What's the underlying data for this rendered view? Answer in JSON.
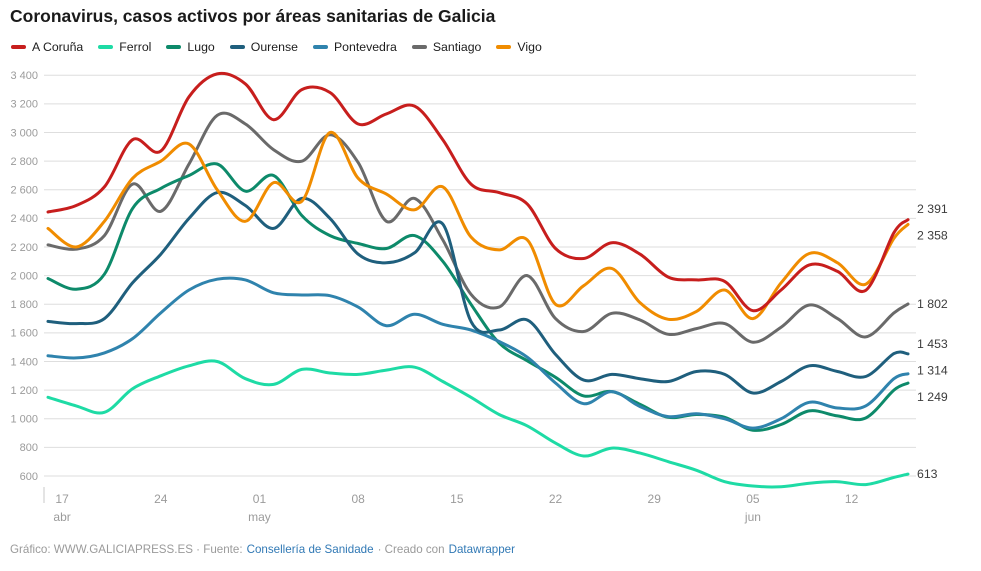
{
  "header": {
    "title": "Coronavirus, casos activos por áreas sanitarias de Galicia"
  },
  "footer": {
    "credit": "Gráfico: WWW.GALICIAPRESS.ES · Fuente:",
    "source_link": "Consellería de Sanidade",
    "created_with": "· Creado con",
    "created_link": "Datawrapper",
    "link_color": "#3179b5"
  },
  "chart_data": {
    "type": "line",
    "title": "Coronavirus, casos activos por áreas sanitarias de Galicia",
    "xlabel": "",
    "ylabel": "",
    "ylim": [
      600,
      3400
    ],
    "grid": true,
    "legend_position": "top",
    "y_ticks": [
      {
        "value": 3400,
        "label": "3 400"
      },
      {
        "value": 3200,
        "label": "3 200"
      },
      {
        "value": 3000,
        "label": "3 000"
      },
      {
        "value": 2800,
        "label": "2 800"
      },
      {
        "value": 2600,
        "label": "2 600"
      },
      {
        "value": 2400,
        "label": "2 400"
      },
      {
        "value": 2200,
        "label": "2 200"
      },
      {
        "value": 2000,
        "label": "2 000"
      },
      {
        "value": 1800,
        "label": "1 800"
      },
      {
        "value": 1600,
        "label": "1 600"
      },
      {
        "value": 1400,
        "label": "1 400"
      },
      {
        "value": 1200,
        "label": "1 200"
      },
      {
        "value": 1000,
        "label": "1 000"
      },
      {
        "value": 800,
        "label": "800"
      },
      {
        "value": 600,
        "label": "600"
      }
    ],
    "x_ticks": [
      {
        "day": 1,
        "label": "17",
        "month": "abr"
      },
      {
        "day": 8,
        "label": "24",
        "month": ""
      },
      {
        "day": 15,
        "label": "01",
        "month": "may"
      },
      {
        "day": 22,
        "label": "08",
        "month": ""
      },
      {
        "day": 29,
        "label": "15",
        "month": ""
      },
      {
        "day": 36,
        "label": "22",
        "month": ""
      },
      {
        "day": 43,
        "label": "29",
        "month": ""
      },
      {
        "day": 50,
        "label": "05",
        "month": "jun"
      },
      {
        "day": 57,
        "label": "12",
        "month": ""
      }
    ],
    "days": [
      0,
      2,
      4,
      6,
      8,
      10,
      12,
      14,
      16,
      18,
      20,
      22,
      24,
      26,
      28,
      30,
      32,
      34,
      36,
      38,
      40,
      42,
      44,
      46,
      48,
      50,
      52,
      54,
      56,
      58,
      60,
      61
    ],
    "series": [
      {
        "id": "a-coruna",
        "name": "A Coruña",
        "color": "#c71e1d",
        "end_label": "2 391",
        "end_value": 2391,
        "values": [
          2445,
          2490,
          2620,
          2950,
          2870,
          3250,
          3410,
          3340,
          3090,
          3300,
          3280,
          3060,
          3130,
          3185,
          2950,
          2640,
          2580,
          2500,
          2190,
          2120,
          2230,
          2150,
          1990,
          1970,
          1960,
          1755,
          1900,
          2075,
          2030,
          1897,
          2300,
          2391
        ]
      },
      {
        "id": "ferrol",
        "name": "Ferrol",
        "color": "#1edba5",
        "end_label": "613",
        "end_value": 613,
        "values": [
          1150,
          1090,
          1045,
          1210,
          1300,
          1370,
          1400,
          1280,
          1240,
          1345,
          1320,
          1310,
          1340,
          1360,
          1260,
          1150,
          1030,
          950,
          830,
          740,
          795,
          760,
          700,
          640,
          560,
          530,
          525,
          550,
          560,
          540,
          590,
          613
        ]
      },
      {
        "id": "lugo",
        "name": "Lugo",
        "color": "#0d8a6a",
        "end_label": "1 249",
        "end_value": 1249,
        "values": [
          1980,
          1905,
          2010,
          2470,
          2610,
          2700,
          2780,
          2590,
          2700,
          2420,
          2280,
          2225,
          2190,
          2280,
          2100,
          1800,
          1530,
          1405,
          1290,
          1160,
          1190,
          1100,
          1010,
          1030,
          1010,
          920,
          960,
          1055,
          1020,
          1005,
          1200,
          1249
        ]
      },
      {
        "id": "ourense",
        "name": "Ourense",
        "color": "#1f5f7d",
        "end_label": "1 453",
        "end_value": 1453,
        "values": [
          1680,
          1665,
          1700,
          1950,
          2150,
          2400,
          2580,
          2490,
          2330,
          2540,
          2400,
          2150,
          2090,
          2160,
          2360,
          1680,
          1620,
          1690,
          1450,
          1270,
          1310,
          1280,
          1260,
          1330,
          1310,
          1180,
          1260,
          1370,
          1330,
          1295,
          1455,
          1453
        ]
      },
      {
        "id": "pontevedra",
        "name": "Pontevedra",
        "color": "#2f83ad",
        "end_label": "1 314",
        "end_value": 1314,
        "values": [
          1440,
          1425,
          1460,
          1560,
          1740,
          1900,
          1975,
          1970,
          1880,
          1865,
          1860,
          1780,
          1650,
          1730,
          1660,
          1620,
          1540,
          1430,
          1250,
          1105,
          1190,
          1085,
          1015,
          1035,
          1000,
          935,
          1000,
          1115,
          1075,
          1090,
          1280,
          1314
        ]
      },
      {
        "id": "santiago",
        "name": "Santiago",
        "color": "#6a6a6a",
        "end_label": "1 802",
        "end_value": 1802,
        "values": [
          2215,
          2185,
          2280,
          2640,
          2450,
          2780,
          3120,
          3060,
          2880,
          2800,
          2985,
          2790,
          2380,
          2540,
          2250,
          1870,
          1780,
          2000,
          1700,
          1610,
          1737,
          1690,
          1590,
          1630,
          1665,
          1535,
          1640,
          1795,
          1700,
          1572,
          1740,
          1802
        ]
      },
      {
        "id": "vigo",
        "name": "Vigo",
        "color": "#f08c00",
        "end_label": "2 358",
        "end_value": 2358,
        "values": [
          2330,
          2200,
          2380,
          2680,
          2800,
          2920,
          2600,
          2380,
          2650,
          2520,
          3000,
          2680,
          2570,
          2460,
          2620,
          2270,
          2180,
          2250,
          1800,
          1930,
          2050,
          1810,
          1695,
          1750,
          1900,
          1700,
          1950,
          2155,
          2090,
          1940,
          2260,
          2358
        ]
      }
    ]
  }
}
